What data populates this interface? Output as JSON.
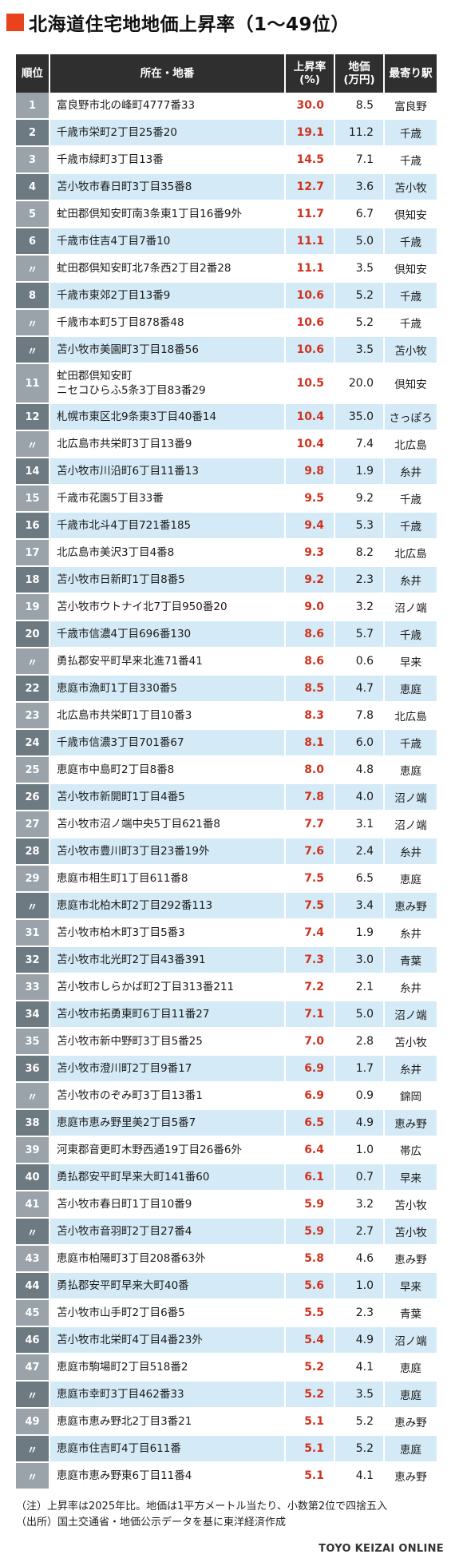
{
  "title": "北海道住宅地地価上昇率（1〜49位）",
  "accent_color": "#e8431c",
  "header": {
    "rank": "順位",
    "address": "所在・地番",
    "rate_line1": "上昇率",
    "rate_line2": "(%)",
    "price_line1": "地価",
    "price_line2": "(万円)",
    "station": "最寄り駅"
  },
  "rows": [
    {
      "rank": "1",
      "address": "富良野市北の峰町4777番33",
      "rate": "30.0",
      "price": "8.5",
      "station": "富良野"
    },
    {
      "rank": "2",
      "address": "千歳市栄町2丁目25番20",
      "rate": "19.1",
      "price": "11.2",
      "station": "千歳"
    },
    {
      "rank": "3",
      "address": "千歳市緑町3丁目13番",
      "rate": "14.5",
      "price": "7.1",
      "station": "千歳"
    },
    {
      "rank": "4",
      "address": "苫小牧市春日町3丁目35番8",
      "rate": "12.7",
      "price": "3.6",
      "station": "苫小牧"
    },
    {
      "rank": "5",
      "address": "虻田郡倶知安町南3条東1丁目16番9外",
      "rate": "11.7",
      "price": "6.7",
      "station": "倶知安"
    },
    {
      "rank": "6",
      "address": "千歳市住吉4丁目7番10",
      "rate": "11.1",
      "price": "5.0",
      "station": "千歳"
    },
    {
      "rank": "〃",
      "address": "虻田郡倶知安町北7条西2丁目2番28",
      "rate": "11.1",
      "price": "3.5",
      "station": "倶知安"
    },
    {
      "rank": "8",
      "address": "千歳市東郊2丁目13番9",
      "rate": "10.6",
      "price": "5.2",
      "station": "千歳"
    },
    {
      "rank": "〃",
      "address": "千歳市本町5丁目878番48",
      "rate": "10.6",
      "price": "5.2",
      "station": "千歳"
    },
    {
      "rank": "〃",
      "address": "苫小牧市美園町3丁目18番56",
      "rate": "10.6",
      "price": "3.5",
      "station": "苫小牧"
    },
    {
      "rank": "11",
      "address": "虻田郡倶知安町",
      "address2": "ニセコひらふ5条3丁目83番29",
      "rate": "10.5",
      "price": "20.0",
      "station": "倶知安"
    },
    {
      "rank": "12",
      "address": "札幌市東区北9条東3丁目40番14",
      "rate": "10.4",
      "price": "35.0",
      "station": "さっぽろ"
    },
    {
      "rank": "〃",
      "address": "北広島市共栄町3丁目13番9",
      "rate": "10.4",
      "price": "7.4",
      "station": "北広島"
    },
    {
      "rank": "14",
      "address": "苫小牧市川沿町6丁目11番13",
      "rate": "9.8",
      "price": "1.9",
      "station": "糸井"
    },
    {
      "rank": "15",
      "address": "千歳市花園5丁目33番",
      "rate": "9.5",
      "price": "9.2",
      "station": "千歳"
    },
    {
      "rank": "16",
      "address": "千歳市北斗4丁目721番185",
      "rate": "9.4",
      "price": "5.3",
      "station": "千歳"
    },
    {
      "rank": "17",
      "address": "北広島市美沢3丁目4番8",
      "rate": "9.3",
      "price": "8.2",
      "station": "北広島"
    },
    {
      "rank": "18",
      "address": "苫小牧市日新町1丁目8番5",
      "rate": "9.2",
      "price": "2.3",
      "station": "糸井"
    },
    {
      "rank": "19",
      "address": "苫小牧市ウトナイ北7丁目950番20",
      "rate": "9.0",
      "price": "3.2",
      "station": "沼ノ端"
    },
    {
      "rank": "20",
      "address": "千歳市信濃4丁目696番130",
      "rate": "8.6",
      "price": "5.7",
      "station": "千歳"
    },
    {
      "rank": "〃",
      "address": "勇払郡安平町早来北進71番41",
      "rate": "8.6",
      "price": "0.6",
      "station": "早来"
    },
    {
      "rank": "22",
      "address": "恵庭市漁町1丁目330番5",
      "rate": "8.5",
      "price": "4.7",
      "station": "恵庭"
    },
    {
      "rank": "23",
      "address": "北広島市共栄町1丁目10番3",
      "rate": "8.3",
      "price": "7.8",
      "station": "北広島"
    },
    {
      "rank": "24",
      "address": "千歳市信濃3丁目701番67",
      "rate": "8.1",
      "price": "6.0",
      "station": "千歳"
    },
    {
      "rank": "25",
      "address": "恵庭市中島町2丁目8番8",
      "rate": "8.0",
      "price": "4.8",
      "station": "恵庭"
    },
    {
      "rank": "26",
      "address": "苫小牧市新開町1丁目4番5",
      "rate": "7.8",
      "price": "4.0",
      "station": "沼ノ端"
    },
    {
      "rank": "27",
      "address": "苫小牧市沼ノ端中央5丁目621番8",
      "rate": "7.7",
      "price": "3.1",
      "station": "沼ノ端"
    },
    {
      "rank": "28",
      "address": "苫小牧市豊川町3丁目23番19外",
      "rate": "7.6",
      "price": "2.4",
      "station": "糸井"
    },
    {
      "rank": "29",
      "address": "恵庭市相生町1丁目611番8",
      "rate": "7.5",
      "price": "6.5",
      "station": "恵庭"
    },
    {
      "rank": "〃",
      "address": "恵庭市北柏木町2丁目292番113",
      "rate": "7.5",
      "price": "3.4",
      "station": "恵み野"
    },
    {
      "rank": "31",
      "address": "苫小牧市柏木町3丁目5番3",
      "rate": "7.4",
      "price": "1.9",
      "station": "糸井"
    },
    {
      "rank": "32",
      "address": "苫小牧市北光町2丁目43番391",
      "rate": "7.3",
      "price": "3.0",
      "station": "青葉"
    },
    {
      "rank": "33",
      "address": "苫小牧市しらかば町2丁目313番211",
      "rate": "7.2",
      "price": "2.1",
      "station": "糸井"
    },
    {
      "rank": "34",
      "address": "苫小牧市拓勇東町6丁目11番27",
      "rate": "7.1",
      "price": "5.0",
      "station": "沼ノ端"
    },
    {
      "rank": "35",
      "address": "苫小牧市新中野町3丁目5番25",
      "rate": "7.0",
      "price": "2.8",
      "station": "苫小牧"
    },
    {
      "rank": "36",
      "address": "苫小牧市澄川町2丁目9番17",
      "rate": "6.9",
      "price": "1.7",
      "station": "糸井"
    },
    {
      "rank": "〃",
      "address": "苫小牧市のぞみ町3丁目13番1",
      "rate": "6.9",
      "price": "0.9",
      "station": "錦岡"
    },
    {
      "rank": "38",
      "address": "恵庭市恵み野里美2丁目5番7",
      "rate": "6.5",
      "price": "4.9",
      "station": "恵み野"
    },
    {
      "rank": "39",
      "address": "河東郡音更町木野西通19丁目26番6外",
      "rate": "6.4",
      "price": "1.0",
      "station": "帯広"
    },
    {
      "rank": "40",
      "address": "勇払郡安平町早来大町141番60",
      "rate": "6.1",
      "price": "0.7",
      "station": "早来"
    },
    {
      "rank": "41",
      "address": "苫小牧市春日町1丁目10番9",
      "rate": "5.9",
      "price": "3.2",
      "station": "苫小牧"
    },
    {
      "rank": "〃",
      "address": "苫小牧市音羽町2丁目27番4",
      "rate": "5.9",
      "price": "2.7",
      "station": "苫小牧"
    },
    {
      "rank": "43",
      "address": "恵庭市柏陽町3丁目208番63外",
      "rate": "5.8",
      "price": "4.6",
      "station": "恵み野"
    },
    {
      "rank": "44",
      "address": "勇払郡安平町早来大町40番",
      "rate": "5.6",
      "price": "1.0",
      "station": "早来"
    },
    {
      "rank": "45",
      "address": "苫小牧市山手町2丁目6番5",
      "rate": "5.5",
      "price": "2.3",
      "station": "青葉"
    },
    {
      "rank": "46",
      "address": "苫小牧市北栄町4丁目4番23外",
      "rate": "5.4",
      "price": "4.9",
      "station": "沼ノ端"
    },
    {
      "rank": "47",
      "address": "恵庭市駒場町2丁目518番2",
      "rate": "5.2",
      "price": "4.1",
      "station": "恵庭"
    },
    {
      "rank": "〃",
      "address": "恵庭市幸町3丁目462番33",
      "rate": "5.2",
      "price": "3.5",
      "station": "恵庭"
    },
    {
      "rank": "49",
      "address": "恵庭市恵み野北2丁目3番21",
      "rate": "5.1",
      "price": "5.2",
      "station": "恵み野"
    },
    {
      "rank": "〃",
      "address": "恵庭市住吉町4丁目611番",
      "rate": "5.1",
      "price": "5.2",
      "station": "恵庭"
    },
    {
      "rank": "〃",
      "address": "恵庭市恵み野東6丁目11番4",
      "rate": "5.1",
      "price": "4.1",
      "station": "恵み野"
    }
  ],
  "note_line1": "（注）上昇率は2025年比。地価は1平方メートル当たり、小数第2位で四捨五入",
  "note_line2": "（出所）国土交通省・地価公示データを基に東洋経済作成",
  "credit": "TOYO KEIZAI ONLINE"
}
